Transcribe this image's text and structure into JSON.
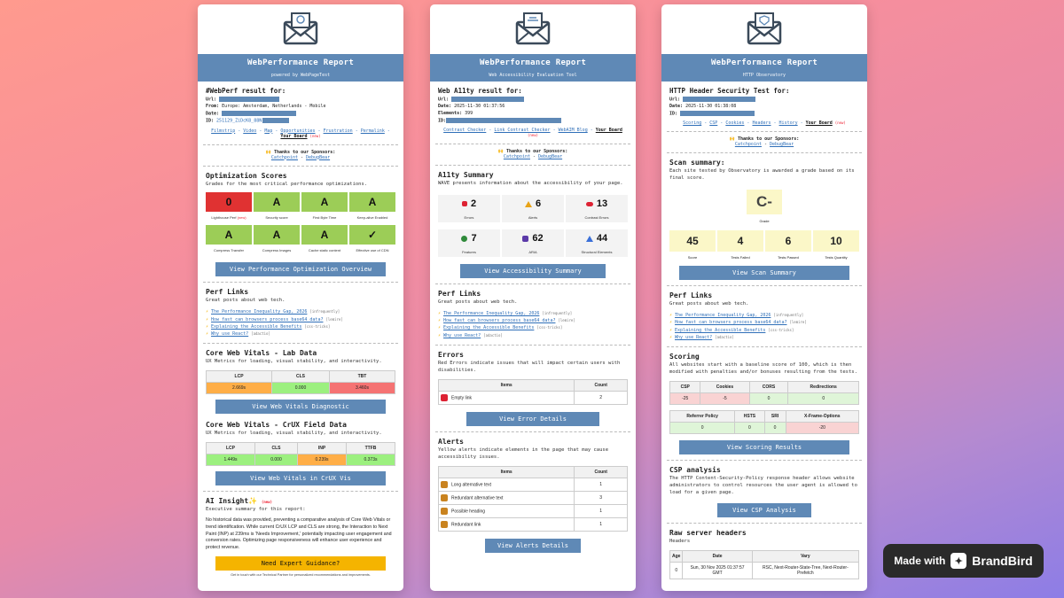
{
  "card1": {
    "title": "WebPerformance Report",
    "subtitle": "powered by WebPageTest",
    "result_heading": "#WebPerf result for:",
    "url_label": "Url:",
    "from_label": "From:",
    "from_value": "Europe: Amsterdam, Netherlands - Mobile",
    "date_label": "Date:",
    "id_label": "ID:",
    "id_value": "251129_ZiDcK8_88N",
    "links": [
      "Filmstrip",
      "Video",
      "Map",
      "Opportunities",
      "Frustration",
      "Permalink"
    ],
    "board_label": "Your Board",
    "new_tag": "(new)",
    "sponsors_label": "🙌 Thanks to our Sponsors:",
    "sponsor1": "Catchpoint",
    "sponsor2": "DebugBear",
    "opt_title": "Optimization Scores",
    "opt_sub": "Grades for the most critical performance optimizations.",
    "opt_row1": [
      {
        "grade": "0",
        "label": "Lighthouse Perf",
        "color": "#e03232"
      },
      {
        "grade": "A",
        "label": "Security score",
        "color": "#9ccd57"
      },
      {
        "grade": "A",
        "label": "First Byte Time",
        "color": "#9ccd57"
      },
      {
        "grade": "A",
        "label": "Keep-alive Enabled",
        "color": "#9ccd57"
      }
    ],
    "opt_row2": [
      {
        "grade": "A",
        "label": "Compress Transfer",
        "color": "#9ccd57"
      },
      {
        "grade": "A",
        "label": "Compress Images",
        "color": "#9ccd57"
      },
      {
        "grade": "A",
        "label": "Cache static content",
        "color": "#9ccd57"
      },
      {
        "grade": "✓",
        "label": "Effective use of CDN",
        "color": "#9ccd57"
      }
    ],
    "opt_button": "View Performance Optimization Overview",
    "perf_title": "Perf Links",
    "perf_sub": "Great posts about web tech.",
    "perf_links": [
      {
        "text": "The Performance Inequality Gap, 2026",
        "tag": "[infrequently]"
      },
      {
        "text": "How fast can browsers process base64 data?",
        "tag": "[lemire]"
      },
      {
        "text": "Explaining the Accessible Benefits",
        "tag": "[css-tricks]"
      },
      {
        "text": "Why use React?",
        "tag": "[adactio]"
      }
    ],
    "lab_title": "Core Web Vitals - Lab Data",
    "lab_sub": "UX Metrics for loading, visual stability, and interactivity.",
    "lab_headers": [
      "LCP",
      "CLS",
      "TBT"
    ],
    "lab_values": [
      "2.669s",
      "0.000",
      "3.460s"
    ],
    "lab_button": "View Web Vitals Diagnostic",
    "crux_title": "Core Web Vitals - CrUX Field Data",
    "crux_sub": "UX Metrics for loading, visual stability, and interactivity.",
    "crux_headers": [
      "LCP",
      "CLS",
      "INP",
      "TTFB"
    ],
    "crux_values": [
      "1.449s",
      "0.000",
      "0.239s",
      "0.373s"
    ],
    "crux_button": "View Web Vitals in CrUX Vis",
    "ai_title": "AI Insight✨",
    "ai_sub": "Executive summary for this report:",
    "ai_text": "No historical data was provided, preventing a comparative analysis of Core Web Vitals or trend identification. While current CrUX LCP and CLS are strong, the Interaction to Next Paint (INP) at 239ms is 'Needs Improvement,' potentially impacting user engagement and conversion rates. Optimizing page responsiveness will enhance user experience and protect revenue.",
    "ai_button": "Need Expert Guidance?",
    "ai_foot": "Get in touch with our Technical Partner for personalized recommendations and improvements."
  },
  "card2": {
    "title": "WebPerformance Report",
    "subtitle": "Web Accessibility Evaluation Tool",
    "result_heading": "Web A11ty result for:",
    "url_label": "Url:",
    "date_label": "Date:",
    "date_value": "2025-11-30 01:37:56",
    "elements_label": "Elements:",
    "elements_value": "399",
    "id_label": "ID:",
    "links": [
      "Contrast Checker",
      "Link Contrast Checker",
      "WebAIM Blog"
    ],
    "board_label": "Your Board",
    "new_tag": "(new)",
    "sponsors_label": "🙌 Thanks to our Sponsors:",
    "sponsor1": "Catchpoint",
    "sponsor2": "DebugBear",
    "summary_title": "A11ty Summary",
    "summary_sub": "WAVE presents information about the accessibility of your page.",
    "summary_tiles": [
      {
        "icon": "error-icon",
        "num": "2",
        "label": "Errors"
      },
      {
        "icon": "alert-icon",
        "num": "6",
        "label": "Alerts"
      },
      {
        "icon": "contrast-icon",
        "num": "13",
        "label": "Contrast Errors"
      },
      {
        "icon": "feature-icon",
        "num": "7",
        "label": "Features"
      },
      {
        "icon": "aria-icon",
        "num": "62",
        "label": "ARIA"
      },
      {
        "icon": "structure-icon",
        "num": "44",
        "label": "Structural Elements"
      }
    ],
    "summary_button": "View Accessibility Summary",
    "perf_title": "Perf Links",
    "perf_sub": "Great posts about web tech.",
    "perf_links": [
      {
        "text": "The Performance Inequality Gap, 2026",
        "tag": "[infrequently]"
      },
      {
        "text": "How fast can browsers process base64 data?",
        "tag": "[lemire]"
      },
      {
        "text": "Explaining the Accessible Benefits",
        "tag": "[css-tricks]"
      },
      {
        "text": "Why use React?",
        "tag": "[adactio]"
      }
    ],
    "errors_title": "Errors",
    "errors_sub": "Red Errors indicate issues that will impact certain users with disabilities.",
    "table_items": "Items",
    "table_count": "Count",
    "errors_rows": [
      {
        "item": "Empty link",
        "count": "2"
      }
    ],
    "errors_button": "View Error Details",
    "alerts_title": "Alerts",
    "alerts_sub": "Yellow alerts indicate elements in the page that may cause accessibility issues.",
    "alerts_rows": [
      {
        "item": "Long alternative text",
        "count": "1"
      },
      {
        "item": "Redundant alternative text",
        "count": "3"
      },
      {
        "item": "Possible heading",
        "count": "1"
      },
      {
        "item": "Redundant link",
        "count": "1"
      }
    ],
    "alerts_button": "View Alerts Details"
  },
  "card3": {
    "title": "WebPerformance Report",
    "subtitle": "HTTP Observatory",
    "result_heading": "HTTP Header Security Test for:",
    "url_label": "Url:",
    "date_label": "Date:",
    "date_value": "2025-11-30 01:38:08",
    "id_label": "ID:",
    "links": [
      "Scoring",
      "CSP",
      "Cookies",
      "Headers",
      "History"
    ],
    "board_label": "Your Board",
    "new_tag": "(new)",
    "sponsors_label": "🙌 Thanks to our Sponsors:",
    "sponsor1": "Catchpoint",
    "sponsor2": "DebugBear",
    "scan_title": "Scan summary:",
    "scan_sub": "Each site tested by Observatory is awarded a grade based on its final score.",
    "grade": "C-",
    "grade_label": "Grade",
    "scan_tiles": [
      {
        "num": "45",
        "label": "Score"
      },
      {
        "num": "4",
        "label": "Tests Failed"
      },
      {
        "num": "6",
        "label": "Tests Passed"
      },
      {
        "num": "10",
        "label": "Tests Quantity"
      }
    ],
    "scan_button": "View Scan Summary",
    "perf_title": "Perf Links",
    "perf_sub": "Great posts about web tech.",
    "perf_links": [
      {
        "text": "The Performance Inequality Gap, 2026",
        "tag": "[infrequently]"
      },
      {
        "text": "How fast can browsers process base64 data?",
        "tag": "[lemire]"
      },
      {
        "text": "Explaining the Accessible Benefits",
        "tag": "[css-tricks]"
      },
      {
        "text": "Why use React?",
        "tag": "[adactio]"
      }
    ],
    "scoring_title": "Scoring",
    "scoring_sub": "All websites start with a baseline score of 100, which is then modified with penalties and/or bonuses resulting from the tests.",
    "scoring_h1": [
      "CSP",
      "Cookies",
      "CORS",
      "Redirections"
    ],
    "scoring_v1": [
      "-25",
      "-5",
      "0",
      "0"
    ],
    "scoring_h2": [
      "Referrer Policy",
      "HSTS",
      "SRI",
      "X-Frame-Options"
    ],
    "scoring_v2": [
      "0",
      "0",
      "0",
      "-20"
    ],
    "scoring_button": "View Scoring Results",
    "csp_title": "CSP analysis",
    "csp_sub": "The HTTP Content-Security-Policy response header allows website administrators to control resources the user agent is allowed to load for a given page.",
    "csp_button": "View CSP Analysis",
    "raw_title": "Raw server headers",
    "raw_sub": "Headers",
    "raw_headers": [
      "Age",
      "Date",
      "Vary"
    ],
    "raw_values": [
      "0",
      "Sun, 30 Nov 2025 01:37:57 GMT",
      "RSC, Next-Router-State-Tree, Next-Router-Prefetch"
    ]
  },
  "badge": {
    "made_with": "Made with",
    "brand": "BrandBird"
  }
}
